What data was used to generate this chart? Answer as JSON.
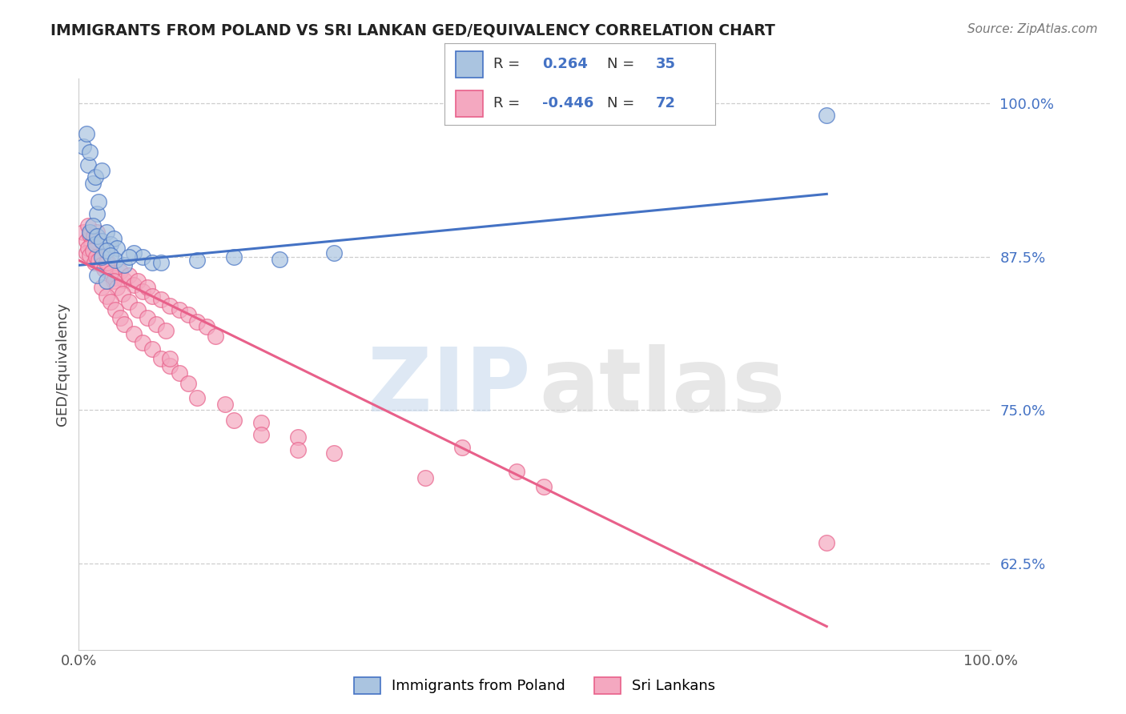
{
  "title": "IMMIGRANTS FROM POLAND VS SRI LANKAN GED/EQUIVALENCY CORRELATION CHART",
  "source": "Source: ZipAtlas.com",
  "ylabel": "GED/Equivalency",
  "xlim": [
    0.0,
    1.0
  ],
  "ylim": [
    0.555,
    1.02
  ],
  "yticks": [
    0.625,
    0.75,
    0.875,
    1.0
  ],
  "ytick_labels": [
    "62.5%",
    "75.0%",
    "87.5%",
    "100.0%"
  ],
  "xticks": [
    0.0,
    1.0
  ],
  "xtick_labels": [
    "0.0%",
    "100.0%"
  ],
  "poland_R": 0.264,
  "poland_N": 35,
  "srilanka_R": -0.446,
  "srilanka_N": 72,
  "poland_color": "#aac4e0",
  "srilanka_color": "#f4a8c0",
  "poland_line_color": "#4472c4",
  "srilanka_line_color": "#e8608a",
  "poland_line_x0": 0.0,
  "poland_line_x1": 0.82,
  "poland_line_y0": 0.868,
  "poland_line_y1": 0.926,
  "srilanka_line_x0": 0.0,
  "srilanka_line_x1": 0.82,
  "srilanka_line_y0": 0.872,
  "srilanka_line_y1": 0.574,
  "poland_x": [
    0.005,
    0.008,
    0.01,
    0.012,
    0.015,
    0.018,
    0.02,
    0.022,
    0.025,
    0.012,
    0.015,
    0.018,
    0.02,
    0.025,
    0.03,
    0.035,
    0.038,
    0.042,
    0.025,
    0.03,
    0.035,
    0.04,
    0.05,
    0.06,
    0.07,
    0.08,
    0.02,
    0.03,
    0.055,
    0.09,
    0.13,
    0.17,
    0.22,
    0.28,
    0.82
  ],
  "poland_y": [
    0.965,
    0.975,
    0.95,
    0.96,
    0.935,
    0.94,
    0.91,
    0.92,
    0.945,
    0.895,
    0.9,
    0.885,
    0.892,
    0.888,
    0.895,
    0.885,
    0.89,
    0.882,
    0.875,
    0.88,
    0.876,
    0.872,
    0.868,
    0.878,
    0.875,
    0.87,
    0.86,
    0.855,
    0.875,
    0.87,
    0.872,
    0.875,
    0.873,
    0.878,
    0.99
  ],
  "srilanka_x": [
    0.005,
    0.008,
    0.01,
    0.012,
    0.014,
    0.016,
    0.018,
    0.02,
    0.008,
    0.01,
    0.012,
    0.015,
    0.017,
    0.019,
    0.022,
    0.025,
    0.028,
    0.032,
    0.036,
    0.04,
    0.045,
    0.05,
    0.055,
    0.06,
    0.065,
    0.07,
    0.075,
    0.08,
    0.09,
    0.1,
    0.11,
    0.12,
    0.13,
    0.14,
    0.15,
    0.03,
    0.035,
    0.038,
    0.042,
    0.048,
    0.055,
    0.065,
    0.075,
    0.085,
    0.095,
    0.025,
    0.03,
    0.035,
    0.04,
    0.045,
    0.05,
    0.06,
    0.07,
    0.08,
    0.09,
    0.1,
    0.11,
    0.12,
    0.16,
    0.2,
    0.24,
    0.28,
    0.38,
    0.42,
    0.48,
    0.51,
    0.13,
    0.17,
    0.2,
    0.24,
    0.82,
    0.1
  ],
  "srilanka_y": [
    0.895,
    0.888,
    0.9,
    0.893,
    0.885,
    0.892,
    0.882,
    0.895,
    0.878,
    0.882,
    0.876,
    0.88,
    0.87,
    0.875,
    0.872,
    0.868,
    0.865,
    0.87,
    0.862,
    0.858,
    0.863,
    0.856,
    0.86,
    0.852,
    0.855,
    0.847,
    0.85,
    0.843,
    0.84,
    0.835,
    0.832,
    0.828,
    0.822,
    0.818,
    0.81,
    0.87,
    0.862,
    0.855,
    0.85,
    0.845,
    0.838,
    0.832,
    0.825,
    0.82,
    0.815,
    0.85,
    0.843,
    0.838,
    0.832,
    0.825,
    0.82,
    0.812,
    0.805,
    0.8,
    0.792,
    0.786,
    0.78,
    0.772,
    0.755,
    0.74,
    0.728,
    0.715,
    0.695,
    0.72,
    0.7,
    0.688,
    0.76,
    0.742,
    0.73,
    0.718,
    0.642,
    0.792
  ]
}
